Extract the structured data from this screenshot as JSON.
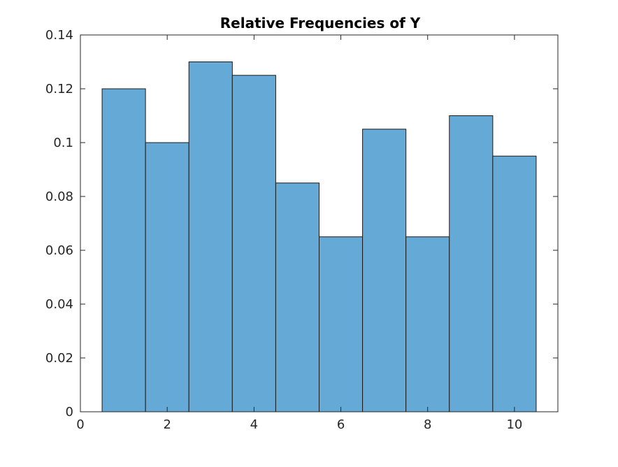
{
  "chart_data": {
    "type": "bar",
    "title": "Relative Frequencies of Y",
    "xlabel": "",
    "ylabel": "",
    "bins": [
      {
        "center": 1,
        "value": 0.12
      },
      {
        "center": 2,
        "value": 0.1
      },
      {
        "center": 3,
        "value": 0.13
      },
      {
        "center": 4,
        "value": 0.125
      },
      {
        "center": 5,
        "value": 0.085
      },
      {
        "center": 6,
        "value": 0.065
      },
      {
        "center": 7,
        "value": 0.105
      },
      {
        "center": 8,
        "value": 0.065
      },
      {
        "center": 9,
        "value": 0.11
      },
      {
        "center": 10,
        "value": 0.095
      }
    ],
    "bin_width": 1,
    "xlim": [
      0,
      11
    ],
    "ylim": [
      0,
      0.14
    ],
    "xticks": [
      0,
      2,
      4,
      6,
      8,
      10
    ],
    "xtick_labels": [
      "0",
      "2",
      "4",
      "6",
      "8",
      "10"
    ],
    "yticks": [
      0,
      0.02,
      0.04,
      0.06,
      0.08,
      0.1,
      0.12,
      0.14
    ],
    "ytick_labels": [
      "0",
      "0.02",
      "0.04",
      "0.06",
      "0.08",
      "0.1",
      "0.12",
      "0.14"
    ],
    "grid": false,
    "legend": "none",
    "colors": {
      "bar_fill": "#65a9d7",
      "bar_edge": "#1a1a1a",
      "axis": "#262626"
    }
  }
}
